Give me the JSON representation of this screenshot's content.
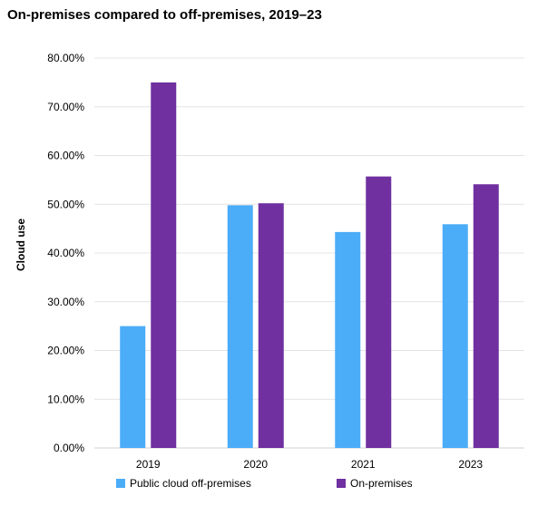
{
  "chart_data": {
    "type": "bar",
    "title": "On-premises compared to off-premises, 2019–23",
    "xlabel": "",
    "ylabel": "Cloud use",
    "categories": [
      "2019",
      "2020",
      "2021",
      "2023"
    ],
    "series": [
      {
        "name": "Public cloud off-premises",
        "values": [
          0.25,
          0.498,
          0.443,
          0.459
        ],
        "color": "#4BACF7"
      },
      {
        "name": "On-premises",
        "values": [
          0.75,
          0.502,
          0.557,
          0.541
        ],
        "color": "#7030A0"
      }
    ],
    "ylim": [
      0,
      0.8
    ],
    "yticks": [
      "0.00%",
      "10.00%",
      "20.00%",
      "30.00%",
      "40.00%",
      "50.00%",
      "60.00%",
      "70.00%",
      "80.00%"
    ],
    "grid": true,
    "legend_position": "bottom"
  }
}
